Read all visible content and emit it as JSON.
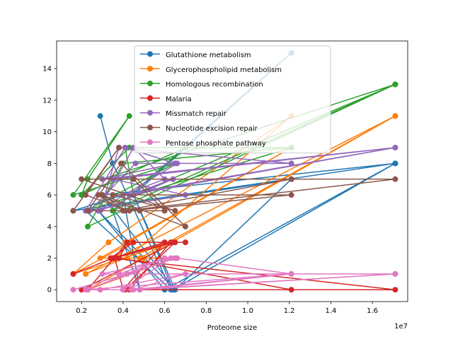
{
  "chart_data": {
    "type": "line",
    "title": "",
    "xlabel": "Proteome size",
    "ylabel": "",
    "x_offset_label": "1e7",
    "xlim": [
      800000,
      17700000
    ],
    "ylim": [
      -0.75,
      15.75
    ],
    "x_ticks": [
      {
        "value": 2000000,
        "label": "0.2"
      },
      {
        "value": 4000000,
        "label": "0.4"
      },
      {
        "value": 6000000,
        "label": "0.6"
      },
      {
        "value": 8000000,
        "label": "0.8"
      },
      {
        "value": 10000000,
        "label": "1.0"
      },
      {
        "value": 12000000,
        "label": "1.2"
      },
      {
        "value": 14000000,
        "label": "1.4"
      },
      {
        "value": 16000000,
        "label": "1.6"
      }
    ],
    "y_ticks": [
      {
        "value": 0,
        "label": "0"
      },
      {
        "value": 2,
        "label": "2"
      },
      {
        "value": 4,
        "label": "4"
      },
      {
        "value": 6,
        "label": "6"
      },
      {
        "value": 8,
        "label": "8"
      },
      {
        "value": 10,
        "label": "10"
      },
      {
        "value": 12,
        "label": "12"
      },
      {
        "value": 14,
        "label": "14"
      }
    ],
    "grid": false,
    "legend_position": "top-center",
    "series": [
      {
        "name": "Glutathione metabolism",
        "color": "#1f77b4",
        "points": [
          [
            2900000,
            11
          ],
          [
            3500000,
            8
          ],
          [
            6300000,
            0
          ],
          [
            2200000,
            5
          ],
          [
            12100000,
            7
          ],
          [
            6500000,
            0
          ],
          [
            3000000,
            6
          ],
          [
            17100000,
            8
          ],
          [
            6400000,
            0
          ],
          [
            4500000,
            6
          ],
          [
            12100000,
            15
          ],
          [
            3500000,
            5
          ],
          [
            4800000,
            0
          ],
          [
            4000000,
            6
          ],
          [
            1600000,
            5
          ],
          [
            17100000,
            8
          ],
          [
            6000000,
            0
          ],
          [
            2800000,
            5
          ],
          [
            6500000,
            0
          ],
          [
            4500000,
            6
          ]
        ]
      },
      {
        "name": "Glycerophospholipid metabolism",
        "color": "#ff7f0e",
        "points": [
          [
            1600000,
            1
          ],
          [
            3300000,
            3
          ],
          [
            12100000,
            11
          ],
          [
            4200000,
            2
          ],
          [
            6500000,
            2
          ],
          [
            2300000,
            0
          ],
          [
            17100000,
            11
          ],
          [
            4800000,
            2
          ],
          [
            3800000,
            2
          ],
          [
            2900000,
            2
          ],
          [
            12100000,
            9
          ],
          [
            4100000,
            3
          ],
          [
            6000000,
            3
          ],
          [
            2200000,
            1
          ],
          [
            17100000,
            11
          ],
          [
            5000000,
            2
          ],
          [
            3600000,
            2
          ],
          [
            4400000,
            3
          ],
          [
            1600000,
            1
          ],
          [
            6400000,
            3
          ]
        ]
      },
      {
        "name": "Homologous recombination",
        "color": "#2ca02c",
        "points": [
          [
            2000000,
            6
          ],
          [
            2300000,
            7
          ],
          [
            4300000,
            11
          ],
          [
            1600000,
            6
          ],
          [
            6500000,
            8
          ],
          [
            3000000,
            7
          ],
          [
            17100000,
            13
          ],
          [
            2300000,
            4
          ],
          [
            4000000,
            8
          ],
          [
            12100000,
            9
          ],
          [
            4300000,
            9
          ],
          [
            2000000,
            6
          ],
          [
            7000000,
            9
          ],
          [
            3500000,
            5
          ],
          [
            17100000,
            13
          ],
          [
            4500000,
            6
          ],
          [
            4100000,
            9
          ],
          [
            6500000,
            8
          ],
          [
            2200000,
            5
          ],
          [
            12100000,
            9
          ]
        ]
      },
      {
        "name": "Malaria",
        "color": "#d62728",
        "points": [
          [
            1600000,
            1
          ],
          [
            3500000,
            2
          ],
          [
            6500000,
            3
          ],
          [
            4100000,
            0
          ],
          [
            12100000,
            0
          ],
          [
            3800000,
            2
          ],
          [
            4200000,
            3
          ],
          [
            2300000,
            0
          ],
          [
            17100000,
            0
          ],
          [
            3500000,
            2
          ],
          [
            6000000,
            3
          ],
          [
            4000000,
            0
          ],
          [
            3600000,
            2
          ],
          [
            6300000,
            3
          ],
          [
            4300000,
            0
          ],
          [
            2000000,
            0
          ],
          [
            6500000,
            3
          ],
          [
            3400000,
            2
          ],
          [
            4500000,
            3
          ],
          [
            7000000,
            3
          ]
        ]
      },
      {
        "name": "Missmatch repair",
        "color": "#9467bd",
        "points": [
          [
            2200000,
            5
          ],
          [
            4100000,
            9
          ],
          [
            6500000,
            8
          ],
          [
            3000000,
            7
          ],
          [
            17100000,
            9
          ],
          [
            4300000,
            6
          ],
          [
            6400000,
            7
          ],
          [
            2900000,
            5
          ],
          [
            3800000,
            9
          ],
          [
            12100000,
            8
          ],
          [
            4600000,
            8
          ],
          [
            2400000,
            5
          ],
          [
            7000000,
            6
          ],
          [
            3500000,
            7
          ],
          [
            17100000,
            9
          ],
          [
            4000000,
            6
          ],
          [
            6000000,
            7
          ],
          [
            4500000,
            9
          ],
          [
            2800000,
            5
          ],
          [
            6600000,
            8
          ]
        ]
      },
      {
        "name": "Nucleotide excision repair",
        "color": "#8c564b",
        "points": [
          [
            1600000,
            5
          ],
          [
            3800000,
            9
          ],
          [
            2200000,
            6
          ],
          [
            4300000,
            5
          ],
          [
            12100000,
            6
          ],
          [
            3500000,
            6
          ],
          [
            6500000,
            5
          ],
          [
            2000000,
            7
          ],
          [
            17100000,
            7
          ],
          [
            4100000,
            5
          ],
          [
            3000000,
            6
          ],
          [
            7000000,
            4
          ],
          [
            3900000,
            8
          ],
          [
            2300000,
            5
          ],
          [
            6000000,
            5
          ],
          [
            4500000,
            7
          ],
          [
            12100000,
            7
          ],
          [
            4000000,
            5
          ],
          [
            2800000,
            6
          ],
          [
            4800000,
            5
          ]
        ]
      },
      {
        "name": "Pentose phosphate pathway",
        "color": "#e377c2",
        "points": [
          [
            1600000,
            0
          ],
          [
            4200000,
            1
          ],
          [
            6500000,
            2
          ],
          [
            2200000,
            0
          ],
          [
            12100000,
            1
          ],
          [
            4800000,
            0
          ],
          [
            17100000,
            1
          ],
          [
            3000000,
            1
          ],
          [
            6300000,
            2
          ],
          [
            4000000,
            0
          ],
          [
            2900000,
            0
          ],
          [
            7000000,
            1
          ],
          [
            4500000,
            0
          ],
          [
            17100000,
            1
          ],
          [
            3800000,
            1
          ],
          [
            6000000,
            2
          ],
          [
            2300000,
            0
          ],
          [
            4400000,
            0
          ],
          [
            12100000,
            1
          ],
          [
            6600000,
            2
          ]
        ]
      }
    ]
  }
}
